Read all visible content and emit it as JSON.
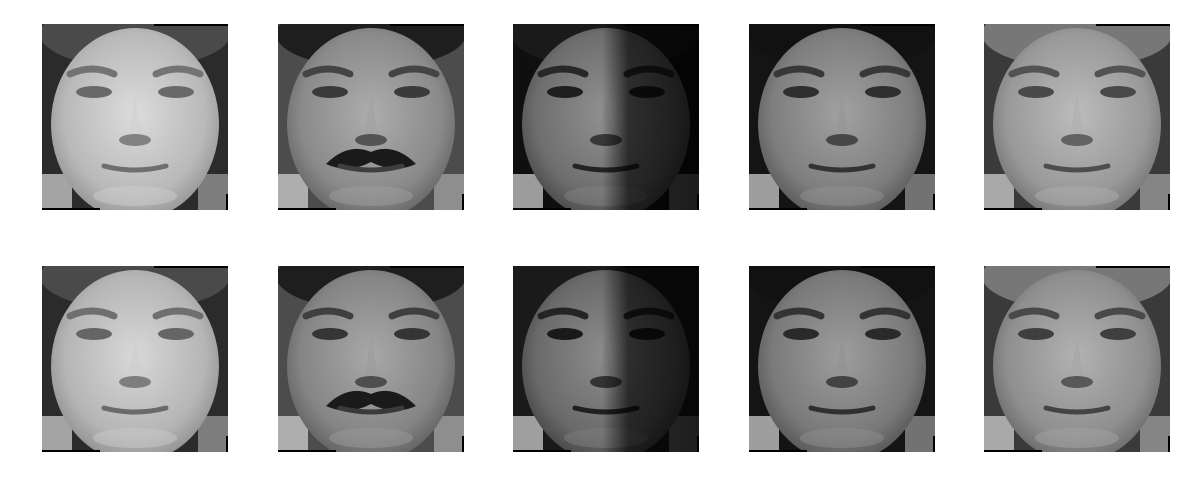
{
  "figure": {
    "rows": [
      {
        "faces": [
          {
            "icon": "face-portrait-grayscale",
            "tone": "#b9b9b9",
            "bg": "#2b2b2b",
            "hair": "#4a4a4a",
            "mustache": false,
            "shadow_side": "none"
          },
          {
            "icon": "face-portrait-grayscale",
            "tone": "#8a8a8a",
            "bg": "#4c4c4c",
            "hair": "#1e1e1e",
            "mustache": true,
            "shadow_side": "none"
          },
          {
            "icon": "face-portrait-grayscale",
            "tone": "#6e6e6e",
            "bg": "#0f0f0f",
            "hair": "#1a1a1a",
            "mustache": false,
            "shadow_side": "right"
          },
          {
            "icon": "face-portrait-grayscale",
            "tone": "#7e7e7e",
            "bg": "#141414",
            "hair": "#111111",
            "mustache": false,
            "shadow_side": "none"
          },
          {
            "icon": "face-portrait-grayscale",
            "tone": "#999999",
            "bg": "#3a3a3a",
            "hair": "#777777",
            "mustache": false,
            "shadow_side": "none"
          }
        ]
      },
      {
        "faces": [
          {
            "icon": "face-portrait-grayscale",
            "tone": "#b5b5b5",
            "bg": "#2b2b2b",
            "hair": "#4a4a4a",
            "mustache": false,
            "shadow_side": "none"
          },
          {
            "icon": "face-portrait-grayscale",
            "tone": "#858585",
            "bg": "#4c4c4c",
            "hair": "#1e1e1e",
            "mustache": true,
            "shadow_side": "none"
          },
          {
            "icon": "face-portrait-grayscale",
            "tone": "#6a6a6a",
            "bg": "#1a1a1a",
            "hair": "#1a1a1a",
            "mustache": false,
            "shadow_side": "right"
          },
          {
            "icon": "face-portrait-grayscale",
            "tone": "#7a7a7a",
            "bg": "#141414",
            "hair": "#111111",
            "mustache": false,
            "shadow_side": "none"
          },
          {
            "icon": "face-portrait-grayscale",
            "tone": "#8f8f8f",
            "bg": "#3a3a3a",
            "hair": "#777777",
            "mustache": false,
            "shadow_side": "none"
          }
        ]
      }
    ]
  }
}
